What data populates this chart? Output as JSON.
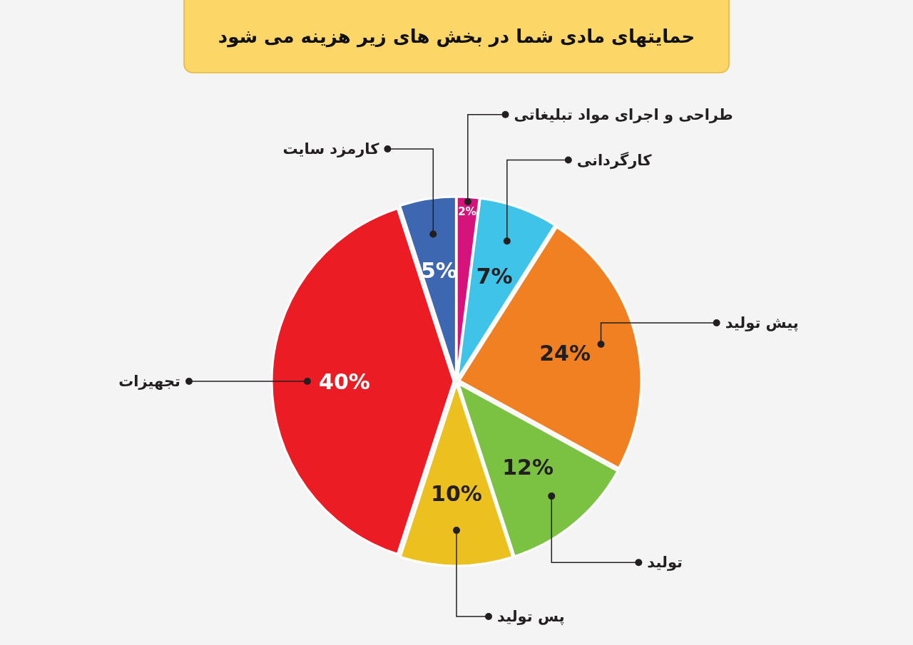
{
  "chart_data": {
    "type": "pie",
    "title": "حمایتهای مادی شما در بخش های زیر هزینه می شود",
    "categories": [
      "طراحی و اجرای مواد تبلیغاتی",
      "کارگردانی",
      "پیش تولید",
      "تولید",
      "پس تولید",
      "تجهیزات",
      "کارمزد سایت"
    ],
    "values": [
      2,
      7,
      24,
      12,
      10,
      40,
      5
    ],
    "colors": [
      "#d6127b",
      "#3fc3e8",
      "#f08022",
      "#7cc242",
      "#ecc01f",
      "#ec1c24",
      "#3e67b1"
    ],
    "value_labels": [
      "2%",
      "7%",
      "24%",
      "12%",
      "10%",
      "40%",
      "5%"
    ]
  }
}
